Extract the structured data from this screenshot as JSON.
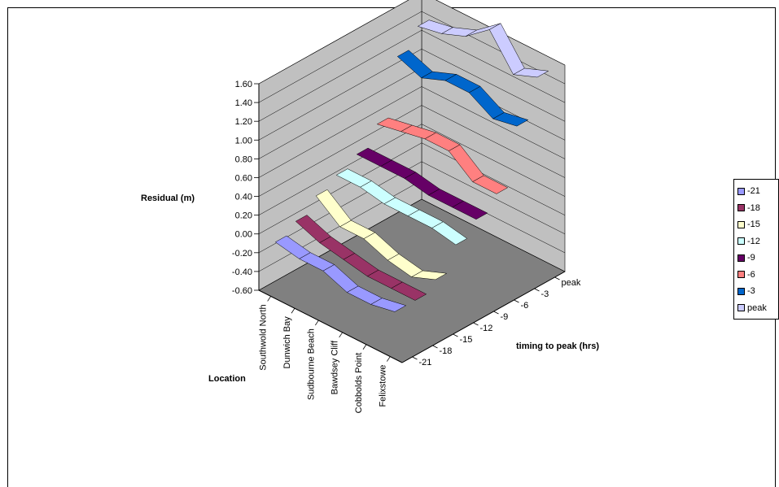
{
  "chart_data": {
    "type": "line-3d",
    "ylabel": "Residual (m)",
    "xlabel": "Location",
    "zlabel": "timing to peak (hrs)",
    "ylim": [
      -0.6,
      1.6
    ],
    "yticks": [
      "1.60",
      "1.40",
      "1.20",
      "1.00",
      "0.80",
      "0.60",
      "0.40",
      "0.20",
      "0.00",
      "-0.20",
      "-0.40",
      "-0.60"
    ],
    "categories": [
      "Southwold  North",
      "Dunwich Bay",
      "Sudbourne Beach",
      "Bawdsey Cliff",
      "Cobbolds Point",
      "Felixstowe"
    ],
    "depth_ticks": [
      "-21",
      "-18",
      "-15",
      "-12",
      "-9",
      "-6",
      "-3",
      "peak"
    ],
    "grid": true,
    "legend_position": "right",
    "series": [
      {
        "name": "-21",
        "color": "#9999FF",
        "values": [
          -0.05,
          -0.1,
          -0.1,
          -0.2,
          -0.2,
          -0.15
        ]
      },
      {
        "name": "-18",
        "color": "#993366",
        "values": [
          0.05,
          -0.05,
          -0.1,
          -0.15,
          -0.15,
          -0.15
        ]
      },
      {
        "name": "-15",
        "color": "#FFFFCC",
        "values": [
          0.2,
          0.0,
          0.0,
          -0.1,
          -0.15,
          -0.05
        ]
      },
      {
        "name": "-12",
        "color": "#CCFFFF",
        "values": [
          0.3,
          0.3,
          0.25,
          0.25,
          0.25,
          0.2
        ]
      },
      {
        "name": "-9",
        "color": "#660066",
        "values": [
          0.4,
          0.4,
          0.4,
          0.35,
          0.35,
          0.35
        ]
      },
      {
        "name": "-6",
        "color": "#FF8080",
        "values": [
          0.6,
          0.65,
          0.7,
          0.7,
          0.5,
          0.5
        ]
      },
      {
        "name": "-3",
        "color": "#0066CC",
        "values": [
          1.2,
          1.1,
          1.2,
          1.2,
          1.05,
          1.1
        ]
      },
      {
        "name": "peak",
        "color": "#CCCCFF",
        "values": [
          1.4,
          1.45,
          1.55,
          1.75,
          1.4,
          1.5
        ]
      }
    ]
  }
}
